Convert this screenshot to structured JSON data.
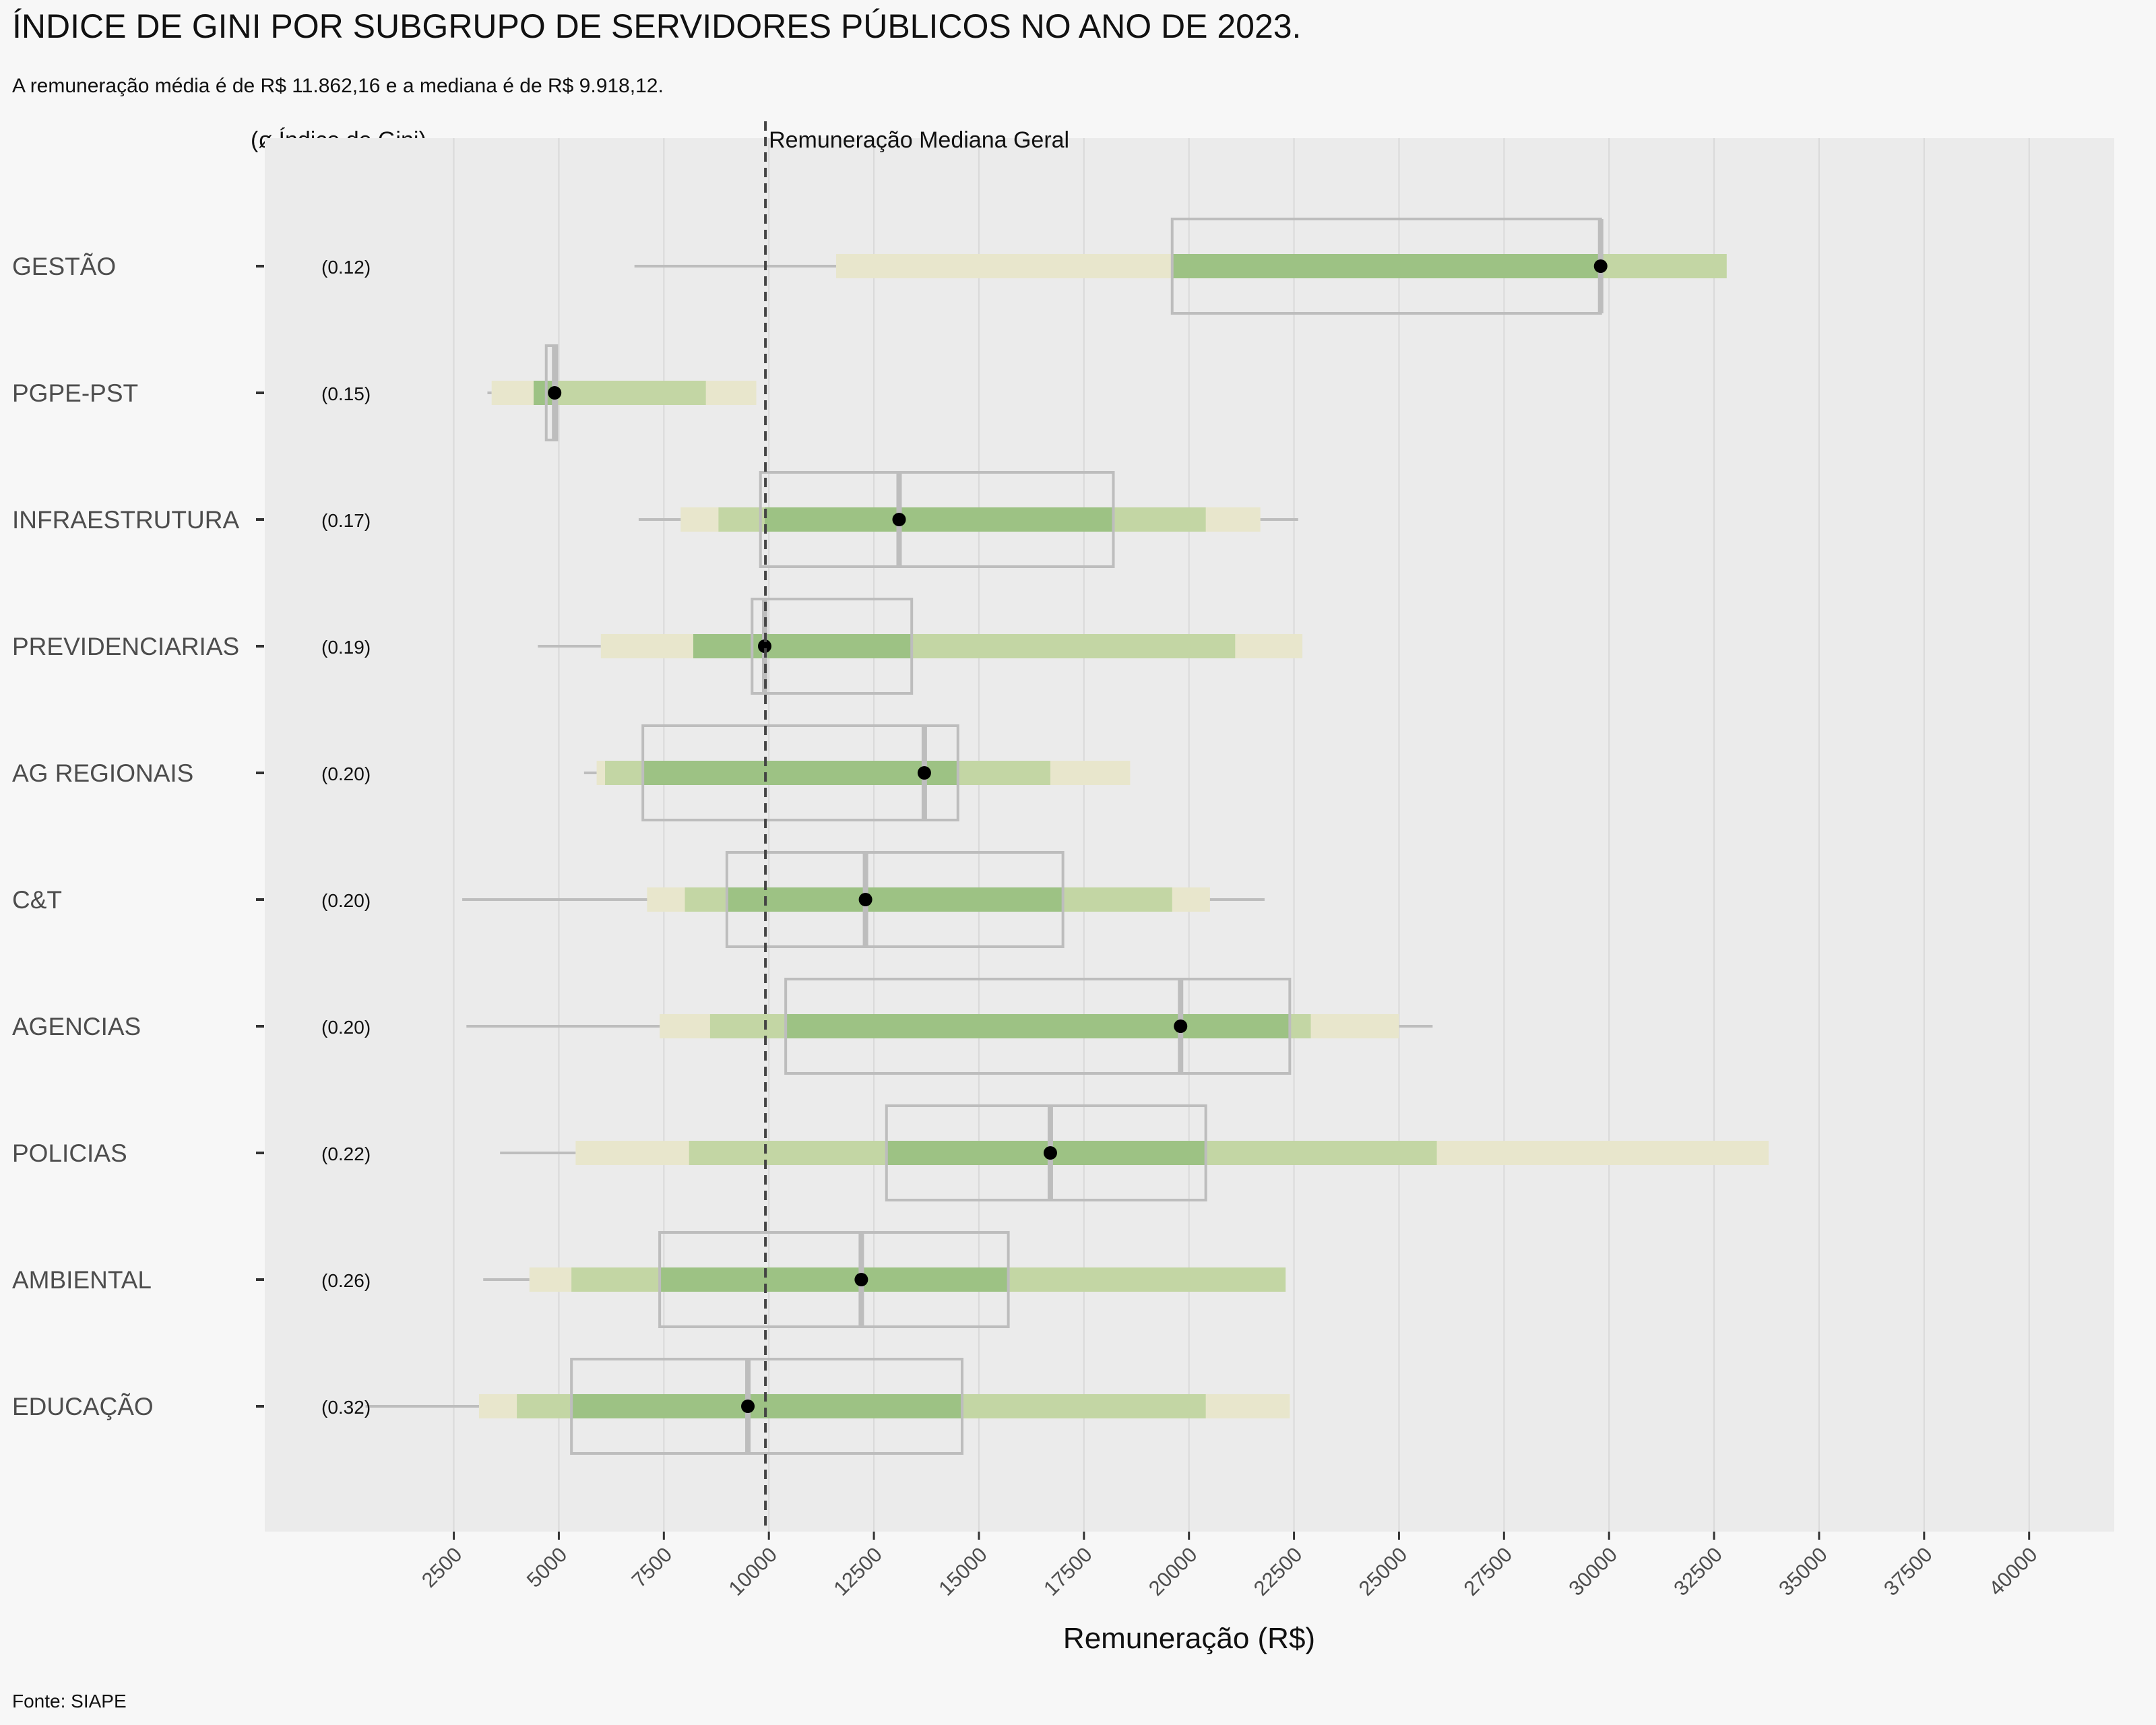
{
  "chart_data": {
    "type": "boxplot",
    "title": "ÍNDICE DE GINI POR SUBGRUPO DE SERVIDORES PÚBLICOS NO ANO DE 2023.",
    "subtitle": "A remuneração média é de R$ 11.862,16 e a mediana é de R$ 9.918,12.",
    "gini_header": "(ø Índice de Gini)",
    "xlabel": "Remuneração (R$)",
    "source": "Fonte: SIAPE",
    "reference_line": {
      "label": "Remuneração Mediana Geral",
      "value": 9918.12
    },
    "xlim": [
      -2000,
      42000
    ],
    "x_ticks": [
      2500,
      5000,
      7500,
      10000,
      12500,
      15000,
      17500,
      20000,
      22500,
      25000,
      27500,
      30000,
      32500,
      35000,
      37500,
      40000
    ],
    "grid": true,
    "colors": {
      "panel": "#ebebeb",
      "grid": "#d9d9d9",
      "band_outer": "#e8e6cc",
      "band_mid": "#c3d6a4",
      "band_inner": "#9dc284",
      "box": "#bdbdbd",
      "whisker": "#bdbdbd",
      "point": "#000000",
      "reference": "#444444"
    },
    "groups": [
      {
        "name": "GESTÃO",
        "gini": "(0.12)",
        "whisker": [
          6800,
          11600
        ],
        "outer": [
          11600,
          32800
        ],
        "mid": [
          19600,
          32800
        ],
        "inner": [
          19600,
          29800
        ],
        "box": [
          19600,
          29800
        ],
        "median": 29800,
        "point": 29800
      },
      {
        "name": "PGPE-PST",
        "gini": "(0.15)",
        "whisker": [
          3300,
          3400
        ],
        "outer": [
          3400,
          9700
        ],
        "mid": [
          4400,
          8500
        ],
        "inner": [
          4400,
          4900
        ],
        "box": [
          4700,
          4950
        ],
        "median": 4900,
        "point": 4900
      },
      {
        "name": "INFRAESTRUTURA",
        "gini": "(0.17)",
        "whisker": [
          6900,
          22600
        ],
        "outer": [
          7900,
          21700
        ],
        "mid": [
          8800,
          20400
        ],
        "inner": [
          9900,
          18200
        ],
        "box": [
          9800,
          18200
        ],
        "median": 13100,
        "point": 13100
      },
      {
        "name": "PREVIDENCIARIAS",
        "gini": "(0.19)",
        "whisker": [
          4500,
          6000
        ],
        "outer": [
          6000,
          22700
        ],
        "mid": [
          8200,
          21100
        ],
        "inner": [
          8200,
          13400
        ],
        "box": [
          9600,
          13400
        ],
        "median": 9900,
        "point": 9900
      },
      {
        "name": "AG REGIONAIS",
        "gini": "(0.20)",
        "whisker": [
          5600,
          5900
        ],
        "outer": [
          5900,
          18600
        ],
        "mid": [
          6100,
          16700
        ],
        "inner": [
          7000,
          14500
        ],
        "box": [
          7000,
          14500
        ],
        "median": 13700,
        "point": 13700
      },
      {
        "name": "C&T",
        "gini": "(0.20)",
        "whisker": [
          2700,
          21800
        ],
        "outer": [
          7100,
          20500
        ],
        "mid": [
          8000,
          19600
        ],
        "inner": [
          9000,
          17000
        ],
        "box": [
          9000,
          17000
        ],
        "median": 12300,
        "point": 12300
      },
      {
        "name": "AGENCIAS",
        "gini": "(0.20)",
        "whisker": [
          2800,
          25800
        ],
        "outer": [
          7400,
          25000
        ],
        "mid": [
          8600,
          22900
        ],
        "inner": [
          10400,
          22400
        ],
        "box": [
          10400,
          22400
        ],
        "median": 19800,
        "point": 19800
      },
      {
        "name": "POLICIAS",
        "gini": "(0.22)",
        "whisker": [
          3600,
          5400
        ],
        "outer": [
          5400,
          33800
        ],
        "mid": [
          8100,
          25900
        ],
        "inner": [
          12800,
          20400
        ],
        "box": [
          12800,
          20400
        ],
        "median": 16700,
        "point": 16700
      },
      {
        "name": "AMBIENTAL",
        "gini": "(0.26)",
        "whisker": [
          3200,
          4300
        ],
        "outer": [
          4300,
          22300
        ],
        "mid": [
          5300,
          22300
        ],
        "inner": [
          7400,
          15700
        ],
        "box": [
          7400,
          15700
        ],
        "median": 12200,
        "point": 12200
      },
      {
        "name": "EDUCAÇÃO",
        "gini": "(0.32)",
        "whisker": [
          400,
          3100
        ],
        "outer": [
          3100,
          22400
        ],
        "mid": [
          4000,
          20400
        ],
        "inner": [
          5300,
          14600
        ],
        "box": [
          5300,
          14600
        ],
        "median": 9500,
        "point": 9500
      }
    ]
  }
}
